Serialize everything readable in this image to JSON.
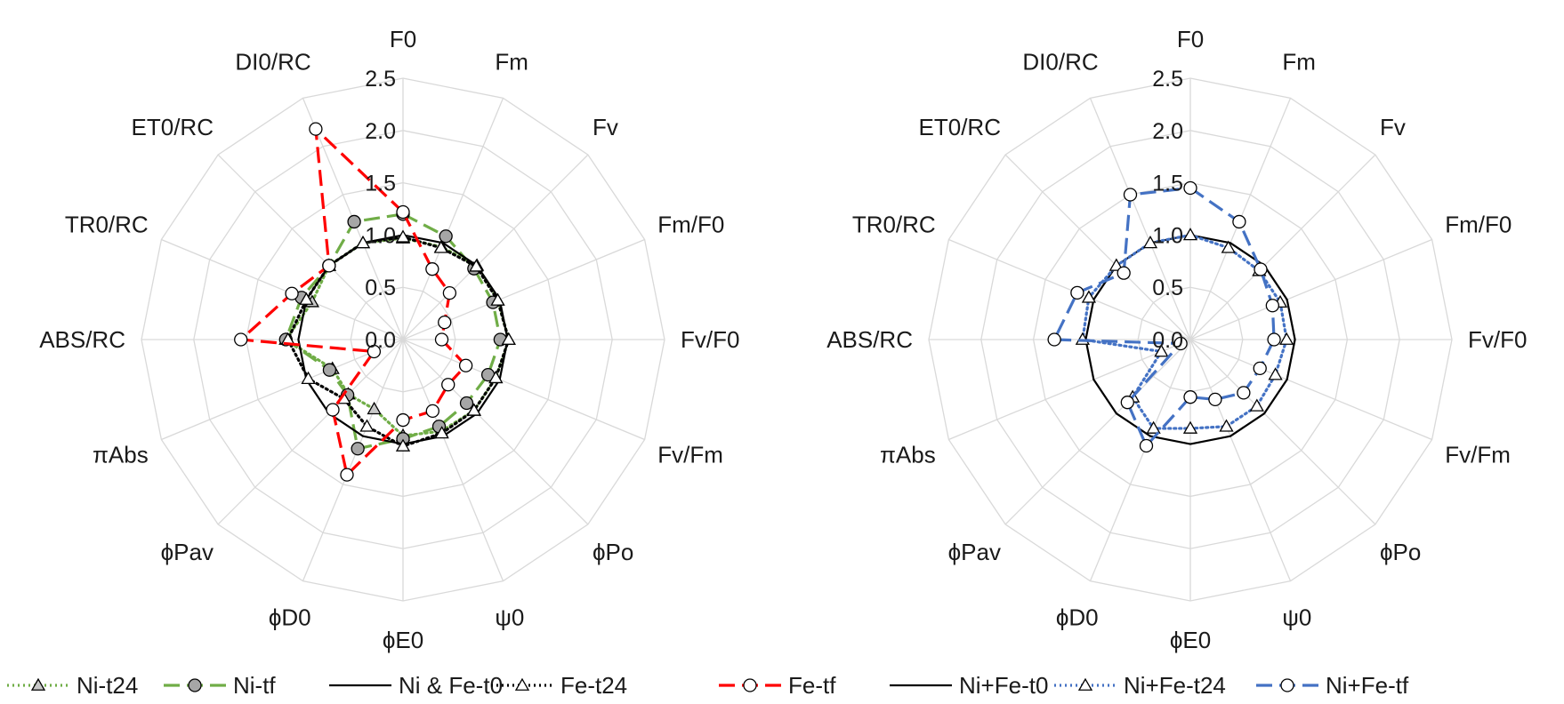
{
  "chart_data": [
    {
      "type": "radar",
      "title": "",
      "axes": [
        "F0",
        "Fm",
        "Fv",
        "Fm/F0",
        "Fv/F0",
        "Fv/Fm",
        "ϕPo",
        "ψ0",
        "ϕE0",
        "ϕD0",
        "ϕPav",
        "πAbs",
        "ABS/RC",
        "TR0/RC",
        "ET0/RC",
        "DI0/RC"
      ],
      "rticks": [
        "0.0",
        "0.5",
        "1.0",
        "1.5",
        "2.0",
        "2.5"
      ],
      "rlim": [
        0,
        2.5
      ],
      "grid": true,
      "series": [
        {
          "name": "Ni-t24",
          "color": "#70ad47",
          "dash": "dot",
          "marker": "triangle",
          "marker_fill": "#c8c8c8",
          "values": [
            0.97,
            0.96,
            1.0,
            0.98,
            1.01,
            0.96,
            0.96,
            0.95,
            0.92,
            0.72,
            0.74,
            0.73,
            1.12,
            0.94,
            1.0,
            1.0
          ]
        },
        {
          "name": "Ni-tf",
          "color": "#70ad47",
          "dash": "longdash",
          "marker": "circle",
          "marker_fill": "#a6a6a6",
          "values": [
            1.2,
            1.07,
            0.96,
            0.93,
            0.93,
            0.88,
            0.86,
            0.9,
            0.95,
            1.13,
            0.75,
            0.76,
            1.12,
            1.05,
            1.0,
            1.22
          ]
        },
        {
          "name": "Ni & Fe-t0",
          "color": "#000000",
          "dash": "solid",
          "marker": "none",
          "marker_fill": "#ffffff",
          "values": [
            1.0,
            1.0,
            1.0,
            1.0,
            1.0,
            1.0,
            1.0,
            1.0,
            1.0,
            1.0,
            1.0,
            1.0,
            1.0,
            1.0,
            1.0,
            1.0
          ]
        },
        {
          "name": "Fe-t24",
          "color": "#000000",
          "dash": "dot",
          "marker": "triangle",
          "marker_fill": "#ffffff",
          "values": [
            0.98,
            0.95,
            0.99,
            0.98,
            1.01,
            0.96,
            0.96,
            0.97,
            1.02,
            0.9,
            0.8,
            0.98,
            1.1,
            1.0,
            1.0,
            1.0
          ]
        },
        {
          "name": "Fe-tf",
          "color": "#ff0000",
          "dash": "longdash",
          "marker": "circle",
          "marker_fill": "#ffffff",
          "values": [
            1.22,
            0.73,
            0.63,
            0.43,
            0.37,
            0.65,
            0.61,
            0.74,
            0.77,
            1.4,
            0.95,
            0.3,
            1.55,
            1.15,
            1.0,
            2.18
          ]
        }
      ]
    },
    {
      "type": "radar",
      "title": "",
      "axes": [
        "F0",
        "Fm",
        "Fv",
        "Fm/F0",
        "Fv/F0",
        "Fv/Fm",
        "ϕPo",
        "ψ0",
        "ϕE0",
        "ϕD0",
        "ϕPav",
        "πAbs",
        "ABS/RC",
        "TR0/RC",
        "ET0/RC",
        "DI0/RC"
      ],
      "rticks": [
        "0.0",
        "0.5",
        "1.0",
        "1.5",
        "2.0",
        "2.5"
      ],
      "rlim": [
        0,
        2.5
      ],
      "grid": true,
      "series": [
        {
          "name": "Ni+Fe-t0",
          "color": "#000000",
          "dash": "solid",
          "marker": "none",
          "marker_fill": "#ffffff",
          "values": [
            1.0,
            1.0,
            1.0,
            1.0,
            1.0,
            1.0,
            1.0,
            1.0,
            1.0,
            1.0,
            1.0,
            1.0,
            1.0,
            1.0,
            1.0,
            1.0
          ]
        },
        {
          "name": "Ni+Fe-t24",
          "color": "#4472c4",
          "dash": "dot",
          "marker": "triangle",
          "marker_fill": "#ffffff",
          "values": [
            1.0,
            0.95,
            0.93,
            0.93,
            0.92,
            0.88,
            0.9,
            0.9,
            0.85,
            0.92,
            0.78,
            0.3,
            1.03,
            1.05,
            1.0,
            1.0
          ]
        },
        {
          "name": "Ni+Fe-tf",
          "color": "#4472c4",
          "dash": "longdash",
          "marker": "circle",
          "marker_fill": "#ffffff",
          "values": [
            1.45,
            1.22,
            0.95,
            0.85,
            0.8,
            0.72,
            0.72,
            0.62,
            0.55,
            1.1,
            0.85,
            0.1,
            1.3,
            1.17,
            0.9,
            1.5
          ]
        }
      ]
    }
  ],
  "legends": [
    [
      {
        "label": "Ni-t24",
        "series": 0
      },
      {
        "label": "Ni-tf",
        "series": 1
      },
      {
        "label": "Ni & Fe-t0",
        "series": 2
      },
      {
        "label": "Fe-t24",
        "series": 3
      },
      {
        "label": "Fe-tf",
        "series": 4
      }
    ],
    [
      {
        "label": "Ni+Fe-t0",
        "series": 0
      },
      {
        "label": "Ni+Fe-t24",
        "series": 1
      },
      {
        "label": "Ni+Fe-tf",
        "series": 2
      }
    ]
  ]
}
